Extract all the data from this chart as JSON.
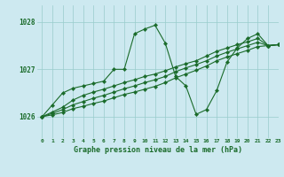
{
  "title": "Graphe pression niveau de la mer (hPa)",
  "bg_color": "#cde9f0",
  "grid_color": "#99cccc",
  "line_color": "#1a6b2a",
  "text_color": "#1a6b2a",
  "xlim": [
    -0.5,
    23
  ],
  "ylim": [
    1025.55,
    1028.35
  ],
  "yticks": [
    1026,
    1027,
    1028
  ],
  "xticks": [
    0,
    1,
    2,
    3,
    4,
    5,
    6,
    7,
    8,
    9,
    10,
    11,
    12,
    13,
    14,
    15,
    16,
    17,
    18,
    19,
    20,
    21,
    22,
    23
  ],
  "s1_x": [
    0,
    1,
    2,
    3,
    4,
    5,
    6,
    7,
    8,
    9,
    10,
    11,
    12,
    13,
    14,
    15,
    16,
    17,
    18,
    19,
    20,
    21,
    22,
    23
  ],
  "s1_y": [
    1026.0,
    1026.25,
    1026.5,
    1026.6,
    1026.65,
    1026.7,
    1026.75,
    1027.0,
    1027.0,
    1027.75,
    1027.85,
    1027.93,
    1027.55,
    1026.85,
    1026.65,
    1026.05,
    1026.15,
    1026.55,
    1027.15,
    1027.45,
    1027.65,
    1027.75,
    1027.5,
    1027.52
  ],
  "s2_x": [
    0,
    1,
    2,
    3,
    4,
    5,
    6,
    7,
    8,
    9,
    10,
    11,
    12,
    13,
    14,
    15,
    16,
    17,
    18,
    19,
    20,
    21,
    22,
    23
  ],
  "s2_y": [
    1026.0,
    1026.1,
    1026.2,
    1026.35,
    1026.45,
    1026.52,
    1026.58,
    1026.65,
    1026.72,
    1026.78,
    1026.85,
    1026.9,
    1026.97,
    1027.05,
    1027.12,
    1027.18,
    1027.28,
    1027.38,
    1027.45,
    1027.52,
    1027.58,
    1027.65,
    1027.5,
    1027.52
  ],
  "s3_x": [
    0,
    1,
    2,
    3,
    4,
    5,
    6,
    7,
    8,
    9,
    10,
    11,
    12,
    13,
    14,
    15,
    16,
    17,
    18,
    19,
    20,
    21,
    22,
    23
  ],
  "s3_y": [
    1026.0,
    1026.07,
    1026.15,
    1026.25,
    1026.32,
    1026.39,
    1026.45,
    1026.52,
    1026.59,
    1026.65,
    1026.72,
    1026.78,
    1026.85,
    1026.95,
    1027.03,
    1027.1,
    1027.18,
    1027.28,
    1027.36,
    1027.43,
    1027.5,
    1027.57,
    1027.5,
    1027.52
  ],
  "s4_x": [
    0,
    1,
    2,
    3,
    4,
    5,
    6,
    7,
    8,
    9,
    10,
    11,
    12,
    13,
    14,
    15,
    16,
    17,
    18,
    19,
    20,
    21,
    22,
    23
  ],
  "s4_y": [
    1026.0,
    1026.04,
    1026.09,
    1026.17,
    1026.22,
    1026.28,
    1026.33,
    1026.4,
    1026.47,
    1026.52,
    1026.58,
    1026.64,
    1026.72,
    1026.82,
    1026.9,
    1026.98,
    1027.07,
    1027.18,
    1027.26,
    1027.33,
    1027.4,
    1027.48,
    1027.5,
    1027.52
  ]
}
